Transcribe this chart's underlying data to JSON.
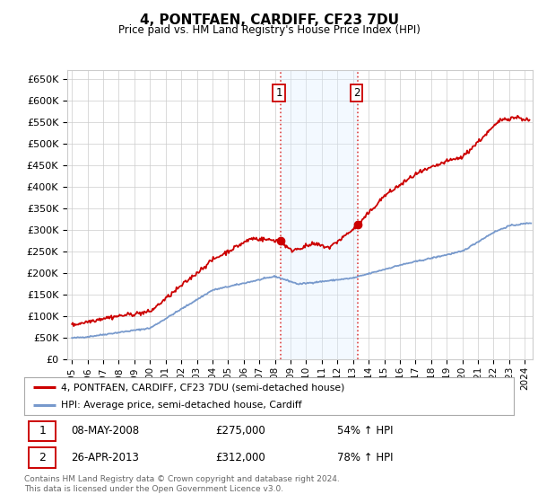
{
  "title": "4, PONTFAEN, CARDIFF, CF23 7DU",
  "subtitle": "Price paid vs. HM Land Registry's House Price Index (HPI)",
  "ylim": [
    0,
    670000
  ],
  "yticks": [
    0,
    50000,
    100000,
    150000,
    200000,
    250000,
    300000,
    350000,
    400000,
    450000,
    500000,
    550000,
    600000,
    650000
  ],
  "xlim_start": 1994.7,
  "xlim_end": 2024.5,
  "hpi_fill_color": "#ddeeff",
  "price_color": "#cc0000",
  "hpi_line_color": "#7799cc",
  "background_color": "#ffffff",
  "grid_color": "#cccccc",
  "purchase1_date": 2008.36,
  "purchase1_price": 275000,
  "purchase2_date": 2013.32,
  "purchase2_price": 312000,
  "legend_label_red": "4, PONTFAEN, CARDIFF, CF23 7DU (semi-detached house)",
  "legend_label_blue": "HPI: Average price, semi-detached house, Cardiff",
  "footer": "Contains HM Land Registry data © Crown copyright and database right 2024.\nThis data is licensed under the Open Government Licence v3.0.",
  "xtick_years": [
    1995,
    1996,
    1997,
    1998,
    1999,
    2000,
    2001,
    2002,
    2003,
    2004,
    2005,
    2006,
    2007,
    2008,
    2009,
    2010,
    2011,
    2012,
    2013,
    2014,
    2015,
    2016,
    2017,
    2018,
    2019,
    2020,
    2021,
    2022,
    2023,
    2024
  ]
}
